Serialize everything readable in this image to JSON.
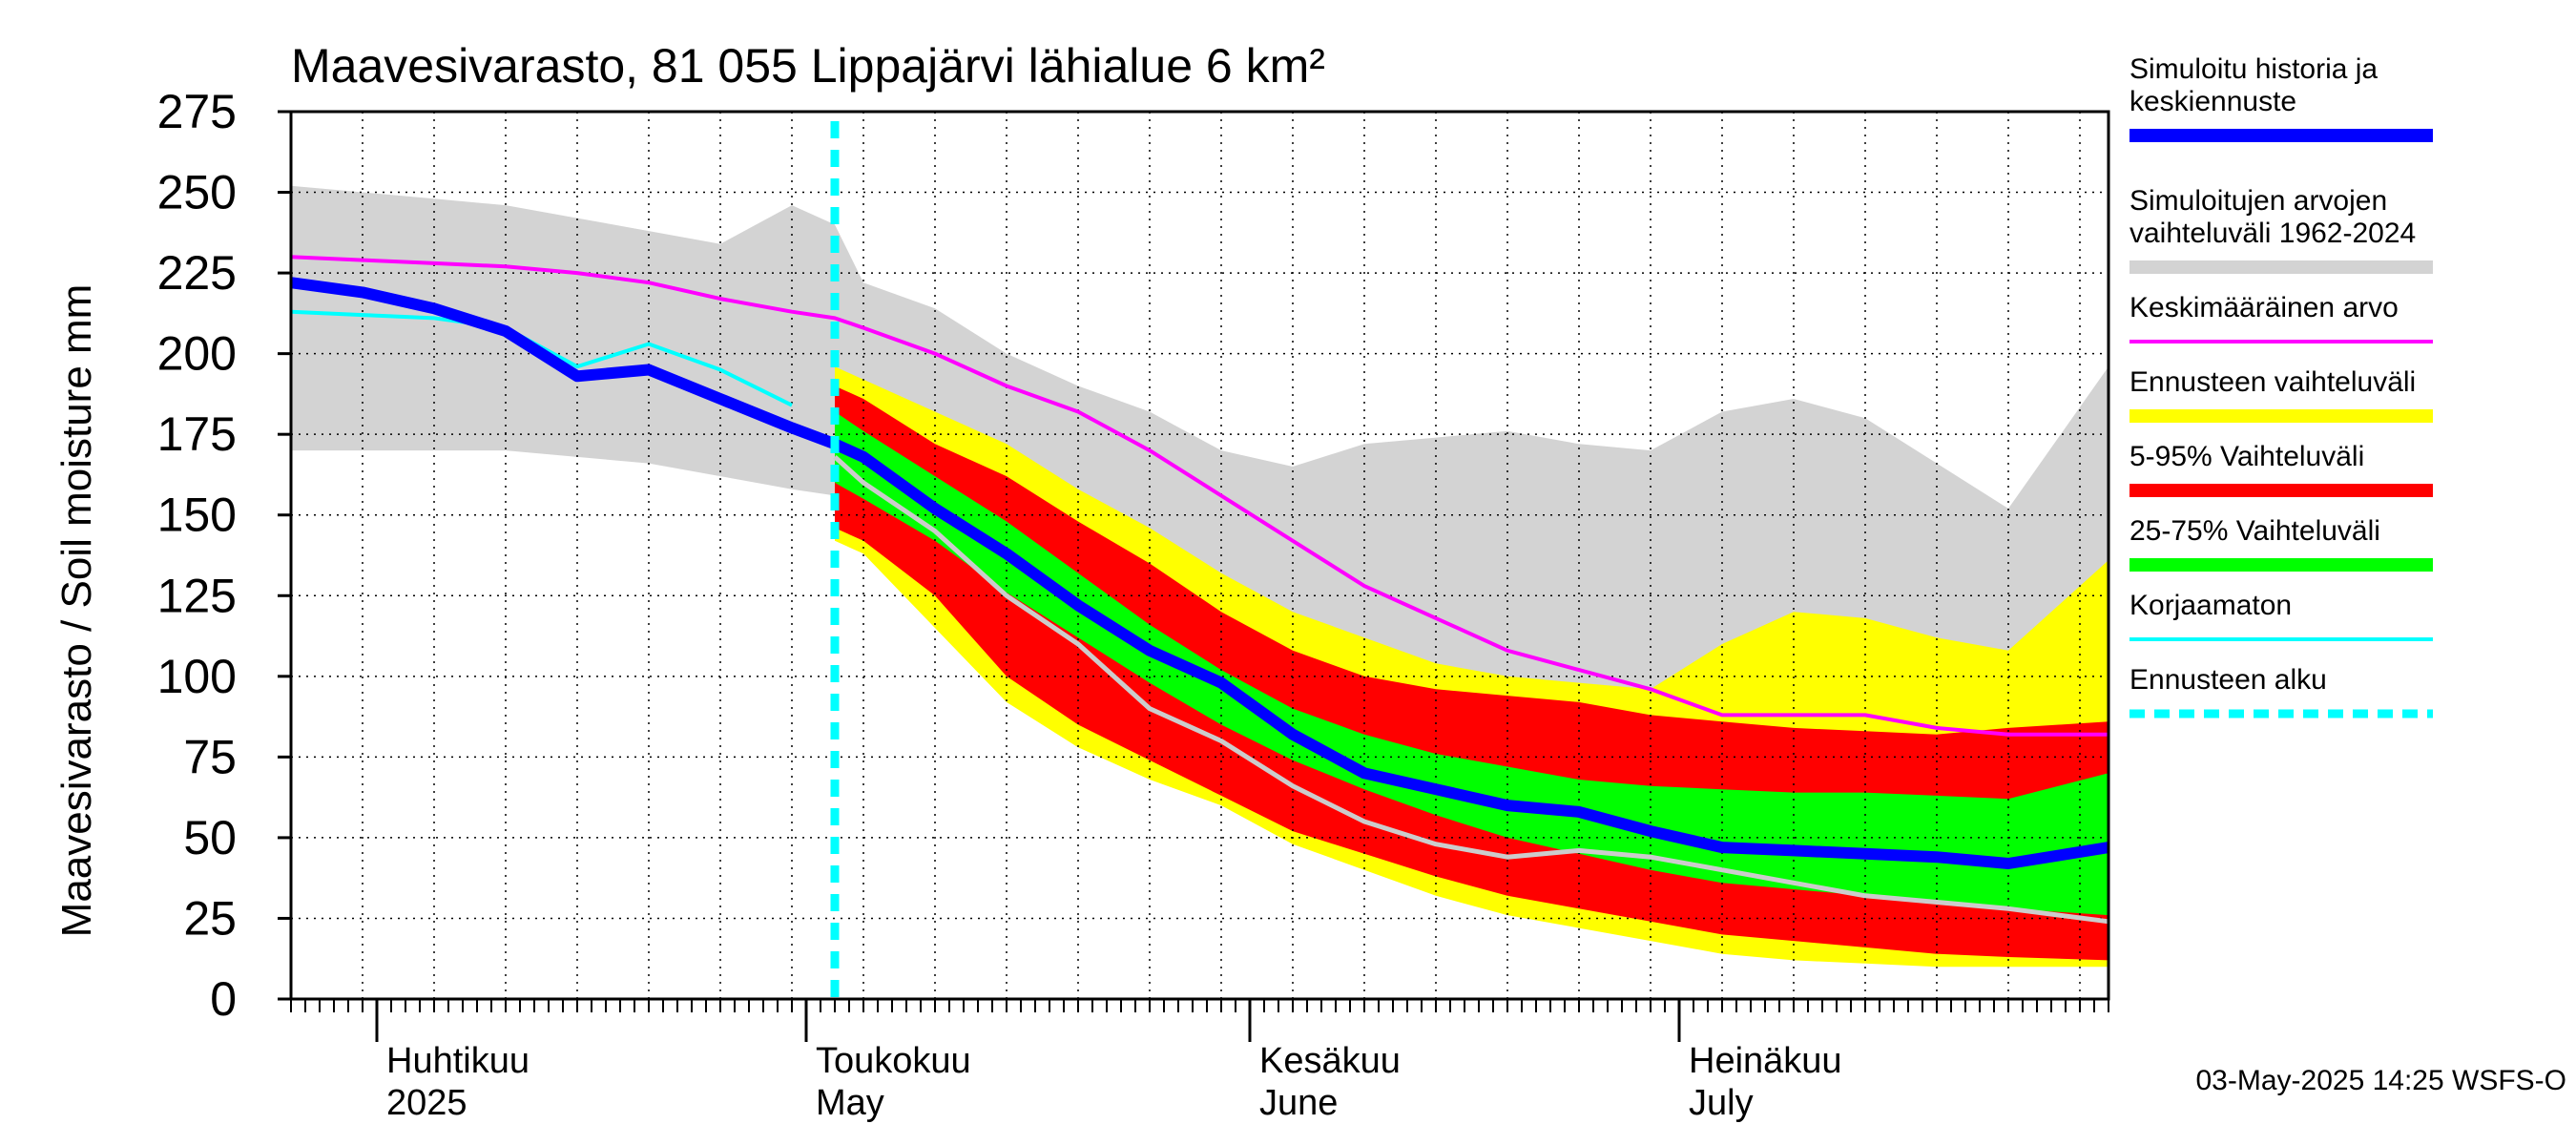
{
  "chart_data": {
    "type": "area",
    "title": "Maavesivarasto, 81 055 Lippajärvi lähialue 6 km²",
    "ylabel": "Maavesivarasto / Soil moisture   mm",
    "ylim": [
      0,
      275
    ],
    "yticks": [
      0,
      25,
      50,
      75,
      100,
      125,
      150,
      175,
      200,
      225,
      250,
      275
    ],
    "xlim": [
      "2025-03-26",
      "2025-07-31"
    ],
    "forecast_start": "2025-05-03",
    "grid": true,
    "legend_position": "right",
    "months": [
      {
        "fi": "Huhtikuu",
        "en": "2025",
        "date": "2025-04-01"
      },
      {
        "fi": "Toukokuu",
        "en": "May",
        "date": "2025-05-01"
      },
      {
        "fi": "Kesäkuu",
        "en": "June",
        "date": "2025-06-01"
      },
      {
        "fi": "Heinäkuu",
        "en": "July",
        "date": "2025-07-01"
      }
    ],
    "x": [
      "2025-03-26",
      "2025-03-31",
      "2025-04-05",
      "2025-04-10",
      "2025-04-15",
      "2025-04-20",
      "2025-04-25",
      "2025-04-30",
      "2025-05-03",
      "2025-05-05",
      "2025-05-10",
      "2025-05-15",
      "2025-05-20",
      "2025-05-25",
      "2025-05-30",
      "2025-06-04",
      "2025-06-09",
      "2025-06-14",
      "2025-06-19",
      "2025-06-24",
      "2025-06-29",
      "2025-07-04",
      "2025-07-09",
      "2025-07-14",
      "2025-07-19",
      "2025-07-24",
      "2025-07-31"
    ],
    "series": [
      {
        "name": "Simuloitujen arvojen vaihteluväli 1962-2024",
        "kind": "band",
        "color": "#d3d3d3",
        "low": [
          170,
          170,
          170,
          170,
          168,
          166,
          162,
          158,
          156,
          150,
          138,
          125,
          110,
          95,
          82,
          72,
          64,
          57,
          52,
          48,
          45,
          42,
          40,
          38,
          36,
          34,
          32
        ],
        "high": [
          252,
          250,
          248,
          246,
          242,
          238,
          234,
          246,
          240,
          222,
          214,
          200,
          190,
          182,
          170,
          165,
          172,
          174,
          176,
          172,
          170,
          182,
          186,
          180,
          166,
          152,
          196
        ]
      },
      {
        "name": "Ennusteen vaihteluväli",
        "kind": "band",
        "color": "#ffff00",
        "low": [
          null,
          null,
          null,
          null,
          null,
          null,
          null,
          null,
          142,
          138,
          115,
          92,
          78,
          68,
          60,
          48,
          40,
          32,
          26,
          22,
          18,
          14,
          12,
          11,
          10,
          10,
          10
        ],
        "high": [
          null,
          null,
          null,
          null,
          null,
          null,
          null,
          null,
          196,
          192,
          182,
          172,
          158,
          146,
          132,
          120,
          112,
          104,
          100,
          98,
          96,
          110,
          120,
          118,
          112,
          108,
          136
        ]
      },
      {
        "name": "5-95% Vaihteluväli",
        "kind": "band",
        "color": "#ff0000",
        "low": [
          null,
          null,
          null,
          null,
          null,
          null,
          null,
          null,
          146,
          142,
          125,
          100,
          85,
          74,
          63,
          52,
          45,
          38,
          32,
          28,
          24,
          20,
          18,
          16,
          14,
          13,
          12
        ],
        "high": [
          null,
          null,
          null,
          null,
          null,
          null,
          null,
          null,
          190,
          186,
          172,
          162,
          148,
          135,
          120,
          108,
          100,
          96,
          94,
          92,
          88,
          86,
          84,
          83,
          82,
          84,
          86
        ]
      },
      {
        "name": "25-75% Vaihteluväli",
        "kind": "band",
        "color": "#00ff00",
        "low": [
          null,
          null,
          null,
          null,
          null,
          null,
          null,
          null,
          160,
          155,
          142,
          126,
          112,
          98,
          85,
          74,
          65,
          57,
          50,
          45,
          40,
          36,
          34,
          32,
          30,
          28,
          26
        ],
        "high": [
          null,
          null,
          null,
          null,
          null,
          null,
          null,
          null,
          182,
          176,
          162,
          148,
          132,
          116,
          102,
          90,
          82,
          76,
          72,
          68,
          66,
          65,
          64,
          64,
          63,
          62,
          70
        ]
      },
      {
        "name": "Keskimääräinen arvo",
        "kind": "line",
        "color": "#ff00ff",
        "width": 4,
        "values": [
          230,
          229,
          228,
          227,
          225,
          222,
          217,
          213,
          211,
          208,
          200,
          190,
          182,
          170,
          156,
          142,
          128,
          118,
          108,
          102,
          96,
          88,
          88,
          88,
          84,
          82,
          82
        ]
      },
      {
        "name": "Korjaamaton",
        "kind": "line",
        "color": "#00ffff",
        "width": 4,
        "values": [
          213,
          212,
          211,
          208,
          196,
          203,
          195,
          184,
          null,
          null,
          null,
          null,
          null,
          null,
          null,
          null,
          null,
          null,
          null,
          null,
          null,
          null,
          null,
          null,
          null,
          null,
          null
        ]
      },
      {
        "name": "Korjaamaton (ennuste)",
        "kind": "line",
        "color": "#cccccc",
        "width": 5,
        "values": [
          null,
          null,
          null,
          null,
          null,
          null,
          null,
          null,
          168,
          160,
          145,
          125,
          110,
          90,
          80,
          66,
          55,
          48,
          44,
          46,
          44,
          40,
          36,
          32,
          30,
          28,
          24
        ]
      },
      {
        "name": "Simuloitu historia ja keskiennuste",
        "kind": "line",
        "color": "#0000ff",
        "width": 12,
        "values": [
          222,
          219,
          214,
          207,
          193,
          195,
          186,
          177,
          172,
          168,
          152,
          138,
          122,
          108,
          98,
          82,
          70,
          65,
          60,
          58,
          52,
          47,
          46,
          45,
          44,
          42,
          47
        ]
      }
    ],
    "legend": [
      {
        "label": "Simuloitu historia ja keskiennuste",
        "color": "#0000ff",
        "style": "thick"
      },
      {
        "label": "Simuloitujen arvojen vaihteluväli 1962-2024",
        "color": "#d3d3d3",
        "style": "thick"
      },
      {
        "label": "Keskimääräinen arvo",
        "color": "#ff00ff",
        "style": "thin"
      },
      {
        "label": "Ennusteen vaihteluväli",
        "color": "#ffff00",
        "style": "thick"
      },
      {
        "label": "5-95% Vaihteluväli",
        "color": "#ff0000",
        "style": "thick"
      },
      {
        "label": "25-75% Vaihteluväli",
        "color": "#00ff00",
        "style": "thick"
      },
      {
        "label": "Korjaamaton",
        "color": "#00ffff",
        "style": "thin"
      },
      {
        "label": "Ennusteen alku",
        "color": "#00ffff",
        "style": "dashed"
      }
    ]
  },
  "timestamp": "03-May-2025 14:25 WSFS-O"
}
